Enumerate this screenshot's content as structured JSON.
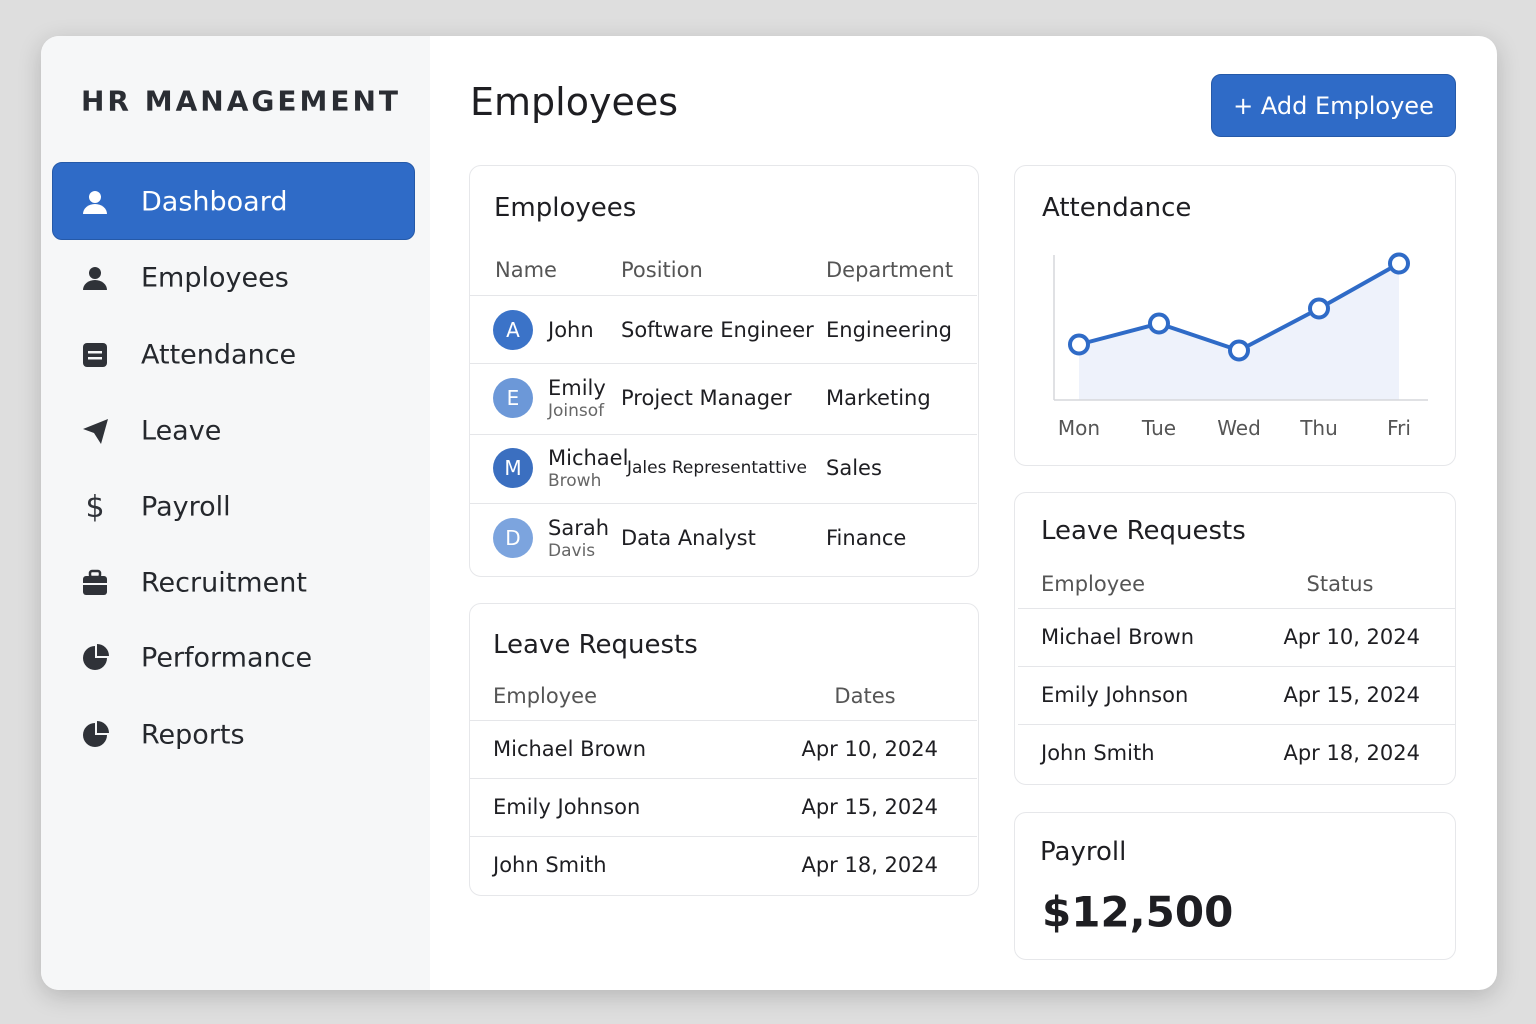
{
  "sidebar": {
    "brand": "HR MANAGEMENT",
    "nav": [
      "Dashboard",
      "Employees",
      "Attendance",
      "Leave",
      "Payroll",
      "Recruitment",
      "Performance",
      "Reports"
    ],
    "active": 0
  },
  "header": {
    "title": "Employees",
    "button": "+ Add Employee"
  },
  "employees": {
    "title": "Employees",
    "columns": [
      "Name",
      "Position",
      "Department"
    ],
    "rows": [
      {
        "initial": "A",
        "first": "John",
        "position": "Software Engineer",
        "department": "Engineering"
      },
      {
        "initial": "E",
        "first": "Emily",
        "last": "Joinsof",
        "position": "Project Manager",
        "department": "Marketing"
      },
      {
        "initial": "M",
        "first": "Michael",
        "last": "Browh",
        "position": "Jales Representattive",
        "department": "Sales"
      },
      {
        "initial": "D",
        "first": "Sarah",
        "last": "Davis",
        "position": "Data Analyst",
        "department": "Finance"
      }
    ]
  },
  "leave_left": {
    "title": "Leave Requests",
    "columns": [
      "Employee",
      "Dates"
    ],
    "rows": [
      [
        "Michael Brown",
        "Apr 10, 2024"
      ],
      [
        "Emily Johnson",
        "Apr 15, 2024"
      ],
      [
        "John Smith",
        "Apr 18, 2024"
      ]
    ]
  },
  "leave_right": {
    "title": "Leave Requests",
    "columns": [
      "Employee",
      "Status"
    ],
    "rows": [
      [
        "Michael Brown",
        "Apr 10, 2024"
      ],
      [
        "Emily Johnson",
        "Apr 15, 2024"
      ],
      [
        "John Smith",
        "Apr 18, 2024"
      ]
    ]
  },
  "payroll": {
    "title": "Payroll",
    "amount": "$12,500"
  },
  "chart_data": {
    "type": "line",
    "title": "Attendance",
    "categories": [
      "Mon",
      "Tue",
      "Wed",
      "Thu",
      "Fri"
    ],
    "values": [
      37,
      51,
      33,
      61,
      91
    ],
    "ylim": [
      0,
      100
    ],
    "color": "#2f6bc7"
  }
}
